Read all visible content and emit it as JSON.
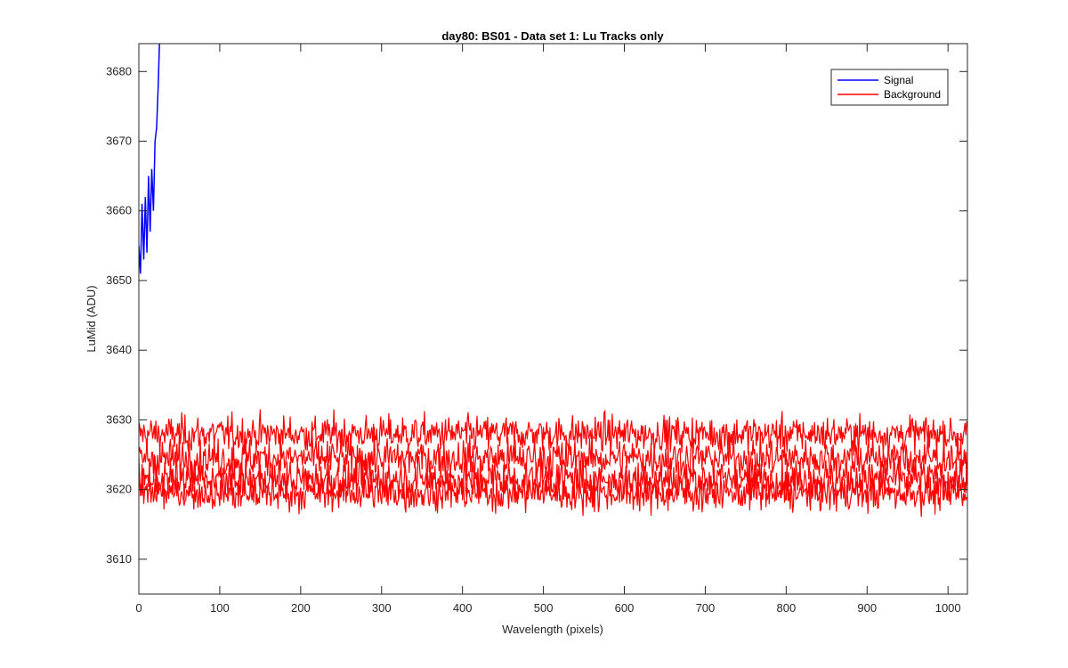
{
  "chart_data": {
    "type": "line",
    "title": "day80: BS01 - Data set 1: Lu Tracks only",
    "xlabel": "Wavelength (pixels)",
    "ylabel": "LuMid (ADU)",
    "xlim": [
      0,
      1024
    ],
    "ylim": [
      3605,
      3684
    ],
    "x_ticks": [
      0,
      100,
      200,
      300,
      400,
      500,
      600,
      700,
      800,
      900,
      1000
    ],
    "y_ticks": [
      3610,
      3620,
      3630,
      3640,
      3650,
      3660,
      3670,
      3680
    ],
    "grid": false,
    "legend": {
      "position": "top-right",
      "entries": [
        "Signal",
        "Background"
      ]
    },
    "series": [
      {
        "name": "Signal",
        "color": "#0000ff",
        "x": [
          0,
          2,
          4,
          6,
          8,
          10,
          12,
          14,
          16,
          18,
          20,
          22,
          24,
          26
        ],
        "y": [
          3655,
          3651,
          3661,
          3653,
          3662,
          3654,
          3665,
          3657,
          3666,
          3660,
          3670,
          3672,
          3678,
          3686
        ]
      },
      {
        "name": "Background",
        "color": "#ff0000",
        "bands": [
          {
            "center": 3628.0,
            "spread": 1.8
          },
          {
            "center": 3624.5,
            "spread": 2.0
          },
          {
            "center": 3621.5,
            "spread": 2.0
          },
          {
            "center": 3619.5,
            "spread": 1.8
          }
        ],
        "x_range": [
          0,
          1024
        ],
        "y_range": [
          3615,
          3633.5
        ]
      }
    ]
  }
}
